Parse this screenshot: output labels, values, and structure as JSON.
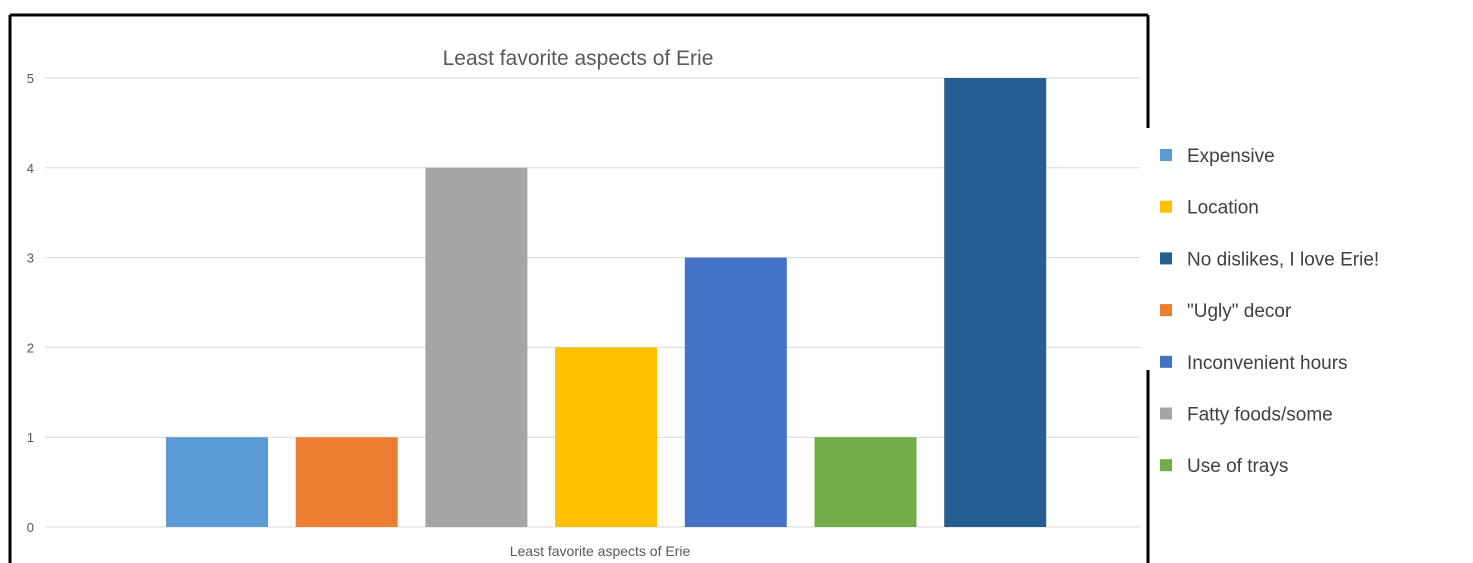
{
  "chart_data": {
    "type": "bar",
    "title": "Least favorite aspects of Erie",
    "xlabel": "Least favorite aspects of Erie",
    "ylabel": "",
    "ylim": [
      0,
      5
    ],
    "yticks": [
      0,
      1,
      2,
      3,
      4,
      5
    ],
    "grid": true,
    "legend_position": "right",
    "bars": [
      {
        "name": "Expensive",
        "value": 1,
        "color": "#5b9bd5"
      },
      {
        "name": "\"Ugly\" decor",
        "value": 1,
        "color": "#ed7d31"
      },
      {
        "name": "Fatty foods/some",
        "value": 4,
        "color": "#a5a5a5"
      },
      {
        "name": "Location",
        "value": 2,
        "color": "#ffc000"
      },
      {
        "name": "Inconvenient hours",
        "value": 3,
        "color": "#4472c4"
      },
      {
        "name": "Use of trays",
        "value": 1,
        "color": "#70ad47"
      },
      {
        "name": "No dislikes, I love Erie!",
        "value": 5,
        "color": "#255e91"
      }
    ],
    "legend": [
      {
        "name": "Expensive",
        "color": "#5b9bd5"
      },
      {
        "name": "Location",
        "color": "#ffc000"
      },
      {
        "name": "No dislikes, I love Erie!",
        "color": "#255e91"
      },
      {
        "name": "\"Ugly\" decor",
        "color": "#ed7d31"
      },
      {
        "name": "Inconvenient hours",
        "color": "#4472c4"
      },
      {
        "name": "Fatty foods/some",
        "color": "#a5a5a5"
      },
      {
        "name": "Use of trays",
        "color": "#70ad47"
      }
    ]
  }
}
